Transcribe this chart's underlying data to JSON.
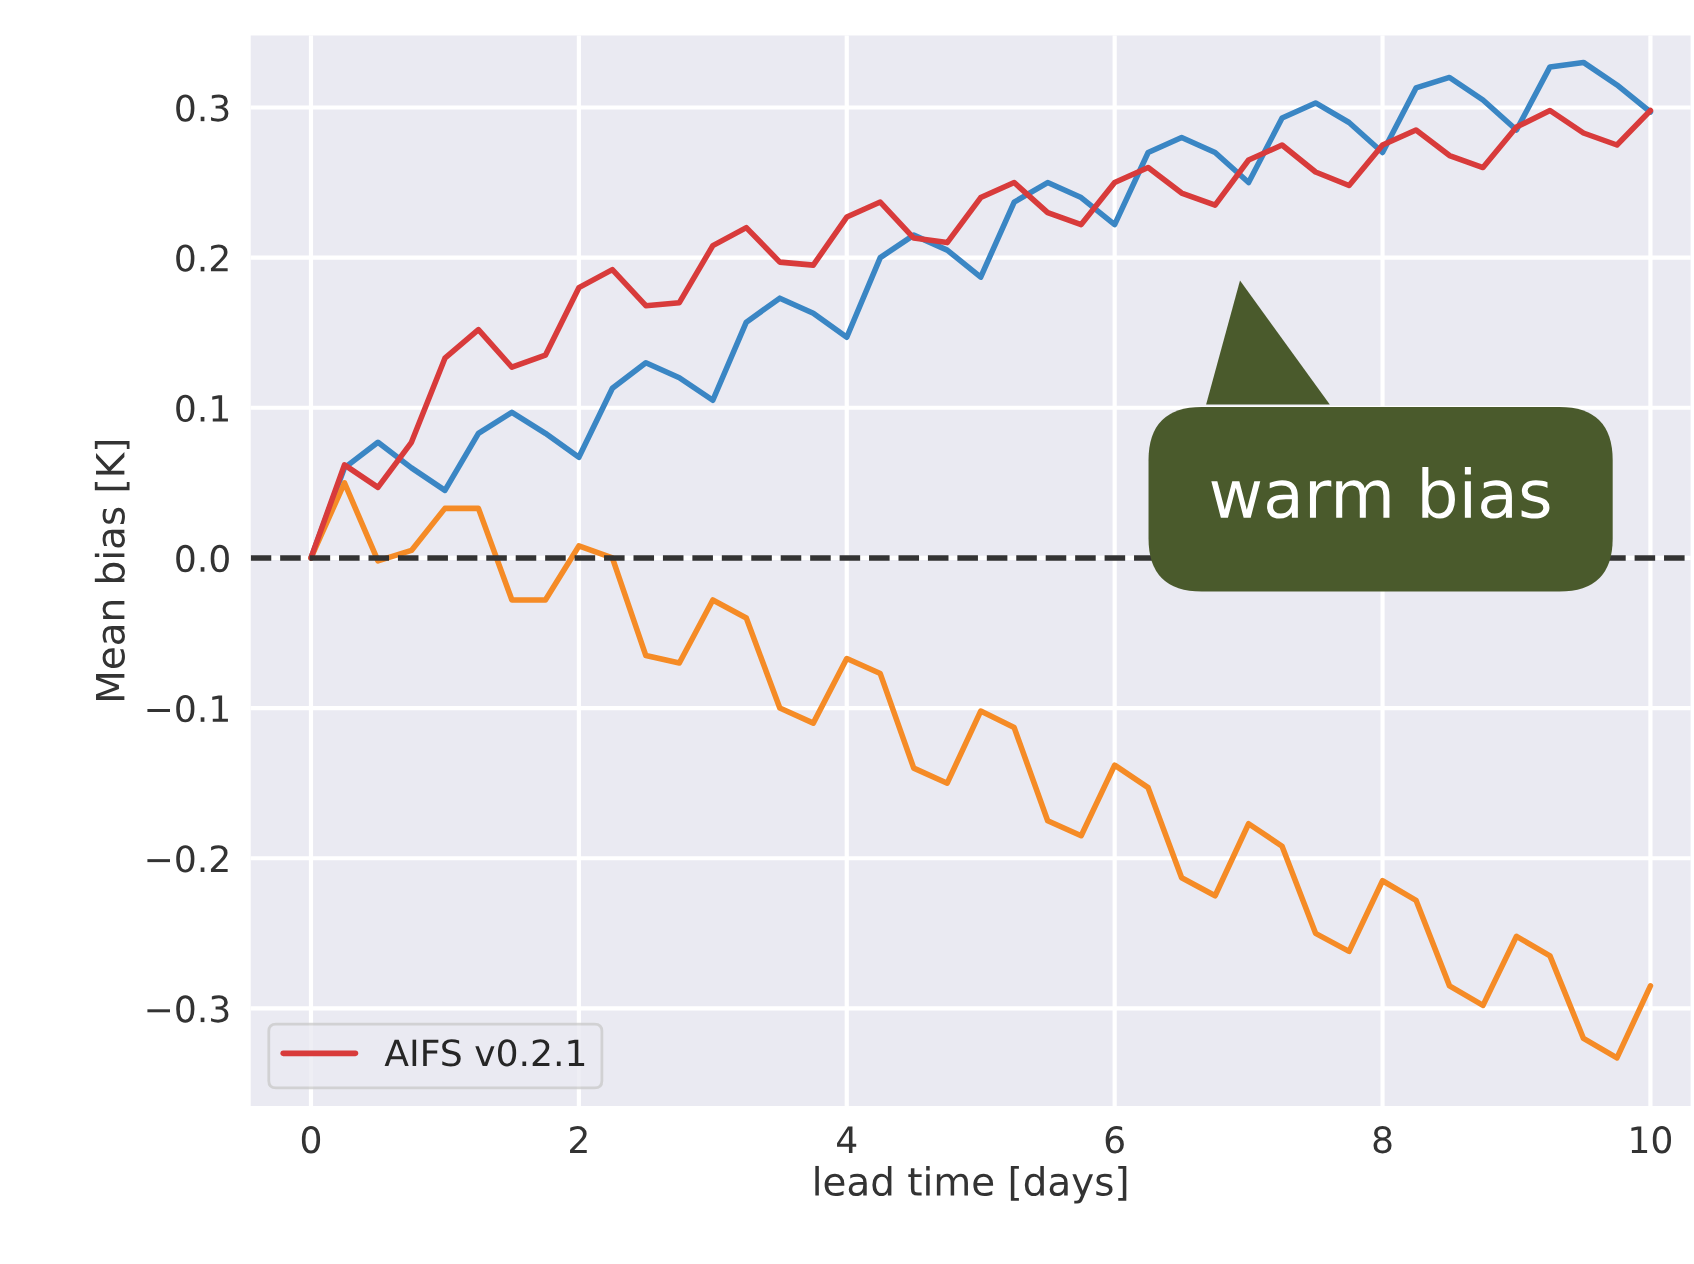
{
  "chart_data": {
    "type": "line",
    "xlabel": "lead time [days]",
    "ylabel": "Mean bias [K]",
    "x": [
      0,
      0.25,
      0.5,
      0.75,
      1,
      1.25,
      1.5,
      1.75,
      2,
      2.25,
      2.5,
      2.75,
      3,
      3.25,
      3.5,
      3.75,
      4,
      4.25,
      4.5,
      4.75,
      5,
      5.25,
      5.5,
      5.75,
      6,
      6.25,
      6.5,
      6.75,
      7,
      7.25,
      7.5,
      7.75,
      8,
      8.25,
      8.5,
      8.75,
      9,
      9.25,
      9.5,
      9.75,
      10
    ],
    "series": [
      {
        "color": "#3a86c4",
        "values": [
          0,
          0.06,
          0.077,
          0.06,
          0.045,
          0.083,
          0.097,
          0.083,
          0.067,
          0.113,
          0.13,
          0.12,
          0.105,
          0.157,
          0.173,
          0.163,
          0.147,
          0.2,
          0.215,
          0.205,
          0.187,
          0.237,
          0.25,
          0.24,
          0.222,
          0.27,
          0.28,
          0.27,
          0.25,
          0.293,
          0.303,
          0.29,
          0.27,
          0.313,
          0.32,
          0.305,
          0.285,
          0.327,
          0.33,
          0.315,
          0.297
        ]
      },
      {
        "color": "#f58b26",
        "values": [
          0,
          0.05,
          -0.002,
          0.005,
          0.033,
          0.033,
          -0.028,
          -0.028,
          0.008,
          0.0,
          -0.065,
          -0.07,
          -0.028,
          -0.04,
          -0.1,
          -0.11,
          -0.067,
          -0.077,
          -0.14,
          -0.15,
          -0.102,
          -0.113,
          -0.175,
          -0.185,
          -0.138,
          -0.153,
          -0.213,
          -0.225,
          -0.177,
          -0.192,
          -0.25,
          -0.262,
          -0.215,
          -0.228,
          -0.285,
          -0.298,
          -0.252,
          -0.265,
          -0.32,
          -0.333,
          -0.285
        ]
      },
      {
        "name": "AIFS v0.2.1",
        "color": "#d83b3b",
        "values": [
          0,
          0.062,
          0.047,
          0.077,
          0.133,
          0.152,
          0.127,
          0.135,
          0.18,
          0.192,
          0.168,
          0.17,
          0.208,
          0.22,
          0.197,
          0.195,
          0.227,
          0.237,
          0.213,
          0.21,
          0.24,
          0.25,
          0.23,
          0.222,
          0.25,
          0.26,
          0.243,
          0.235,
          0.265,
          0.275,
          0.257,
          0.248,
          0.275,
          0.285,
          0.268,
          0.26,
          0.287,
          0.298,
          0.283,
          0.275,
          0.298
        ]
      }
    ],
    "ref_lines": [
      {
        "axis": "y",
        "value": 0,
        "color": "#333333",
        "line_style": "dashed"
      }
    ],
    "annotations": [
      "warm bias"
    ],
    "xlim": [
      -0.45,
      10.3
    ],
    "xticks": [
      0,
      2,
      4,
      6,
      8,
      10
    ],
    "ylim": [
      -0.365,
      0.348
    ],
    "yticks": [
      {
        "value": -0.3,
        "label": "−0.3"
      },
      {
        "value": -0.2,
        "label": "−0.2"
      },
      {
        "value": -0.1,
        "label": "−0.1"
      },
      {
        "value": 0,
        "label": "0.0"
      },
      {
        "value": 0.1,
        "label": "0.1"
      },
      {
        "value": 0.2,
        "label": "0.2"
      },
      {
        "value": 0.3,
        "label": "0.3"
      }
    ],
    "grid": true,
    "legend": "bottom left",
    "line_style": "solid",
    "marker": "none"
  }
}
